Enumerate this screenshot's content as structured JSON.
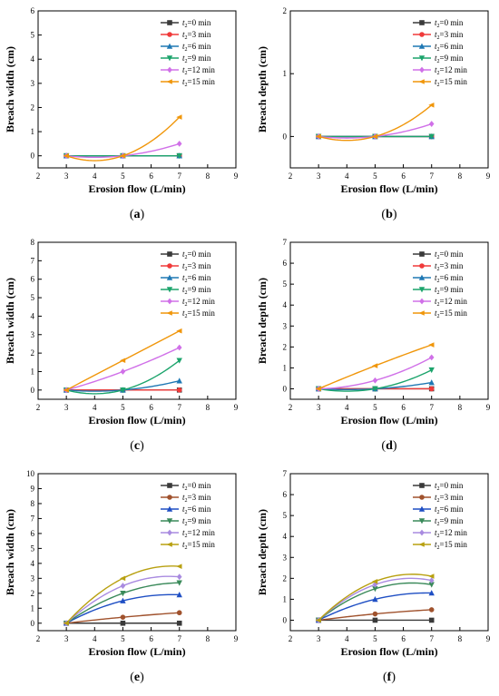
{
  "chart_data": [
    {
      "type": "line",
      "label": "a",
      "xlabel": "Erosion flow (L/min)",
      "ylabel": "Breach width (cm)",
      "xlim": [
        2,
        9
      ],
      "ylim": [
        -0.5,
        6
      ],
      "xticks": [
        2,
        3,
        4,
        5,
        6,
        7,
        8,
        9
      ],
      "yticks": [
        0,
        1,
        2,
        3,
        4,
        5,
        6
      ],
      "legend": "top-right",
      "series": [
        {
          "sub": "2",
          "pre": "t",
          "rest": "=0 min",
          "color": "#3a3a3a",
          "marker": "square",
          "x": [
            3,
            5,
            7
          ],
          "y": [
            0,
            0,
            0
          ]
        },
        {
          "sub": "2",
          "pre": "t",
          "rest": "=3 min",
          "color": "#f03a3a",
          "marker": "circle",
          "x": [
            3,
            5,
            7
          ],
          "y": [
            0,
            0,
            0
          ]
        },
        {
          "sub": "2",
          "pre": "t",
          "rest": "=6 min",
          "color": "#1f78b4",
          "marker": "triangle-up",
          "x": [
            3,
            5,
            7
          ],
          "y": [
            0,
            0,
            0
          ]
        },
        {
          "sub": "2",
          "pre": "t",
          "rest": "=9 min",
          "color": "#1ca46c",
          "marker": "triangle-down",
          "x": [
            3,
            5,
            7
          ],
          "y": [
            0,
            0,
            0
          ]
        },
        {
          "sub": "2",
          "pre": "t",
          "rest": "=12 min",
          "color": "#d070e8",
          "marker": "diamond",
          "x": [
            3,
            5,
            7
          ],
          "y": [
            0,
            0,
            0.5
          ]
        },
        {
          "sub": "2",
          "pre": "t",
          "rest": "=15 min",
          "color": "#f0960a",
          "marker": "triangle-left",
          "x": [
            3,
            5,
            7
          ],
          "y": [
            0,
            0,
            1.6
          ]
        }
      ]
    },
    {
      "type": "line",
      "label": "b",
      "xlabel": "Erosion flow (L/min)",
      "ylabel": "Breach depth (cm)",
      "xlim": [
        2,
        9
      ],
      "ylim": [
        -0.5,
        2
      ],
      "xticks": [
        2,
        3,
        4,
        5,
        6,
        7,
        8,
        9
      ],
      "yticks": [
        0,
        1,
        2
      ],
      "legend": "top-right",
      "series": [
        {
          "sub": "2",
          "pre": "t",
          "rest": "=0 min",
          "color": "#3a3a3a",
          "marker": "square",
          "x": [
            3,
            5,
            7
          ],
          "y": [
            0,
            0,
            0
          ]
        },
        {
          "sub": "2",
          "pre": "t",
          "rest": "=3 min",
          "color": "#f03a3a",
          "marker": "circle",
          "x": [
            3,
            5,
            7
          ],
          "y": [
            0,
            0,
            0
          ]
        },
        {
          "sub": "2",
          "pre": "t",
          "rest": "=6 min",
          "color": "#1f78b4",
          "marker": "triangle-up",
          "x": [
            3,
            5,
            7
          ],
          "y": [
            0,
            0,
            0
          ]
        },
        {
          "sub": "2",
          "pre": "t",
          "rest": "=9 min",
          "color": "#1ca46c",
          "marker": "triangle-down",
          "x": [
            3,
            5,
            7
          ],
          "y": [
            0,
            0,
            0
          ]
        },
        {
          "sub": "2",
          "pre": "t",
          "rest": "=12 min",
          "color": "#d070e8",
          "marker": "diamond",
          "x": [
            3,
            5,
            7
          ],
          "y": [
            0,
            0,
            0.2
          ]
        },
        {
          "sub": "2",
          "pre": "t",
          "rest": "=15 min",
          "color": "#f0960a",
          "marker": "triangle-left",
          "x": [
            3,
            5,
            7
          ],
          "y": [
            0,
            0,
            0.5
          ]
        }
      ]
    },
    {
      "type": "line",
      "label": "c",
      "xlabel": "Erosion flow (L/min)",
      "ylabel": "Breach width (cm)",
      "xlim": [
        2,
        9
      ],
      "ylim": [
        -0.5,
        8
      ],
      "xticks": [
        2,
        3,
        4,
        5,
        6,
        7,
        8,
        9
      ],
      "yticks": [
        0,
        1,
        2,
        3,
        4,
        5,
        6,
        7,
        8
      ],
      "legend": "top-right",
      "series": [
        {
          "sub": "2",
          "pre": "t",
          "rest": "=0 min",
          "color": "#3a3a3a",
          "marker": "square",
          "x": [
            3,
            5,
            7
          ],
          "y": [
            0,
            0,
            0
          ]
        },
        {
          "sub": "2",
          "pre": "t",
          "rest": "=3 min",
          "color": "#f03a3a",
          "marker": "circle",
          "x": [
            3,
            5,
            7
          ],
          "y": [
            0,
            0,
            0
          ]
        },
        {
          "sub": "2",
          "pre": "t",
          "rest": "=6 min",
          "color": "#1f78b4",
          "marker": "triangle-up",
          "x": [
            3,
            5,
            7
          ],
          "y": [
            0,
            0,
            0.5
          ]
        },
        {
          "sub": "2",
          "pre": "t",
          "rest": "=9 min",
          "color": "#1ca46c",
          "marker": "triangle-down",
          "x": [
            3,
            5,
            7
          ],
          "y": [
            0,
            0,
            1.6
          ]
        },
        {
          "sub": "2",
          "pre": "t",
          "rest": "=12 min",
          "color": "#d070e8",
          "marker": "diamond",
          "x": [
            3,
            5,
            7
          ],
          "y": [
            0,
            1.0,
            2.3
          ]
        },
        {
          "sub": "2",
          "pre": "t",
          "rest": "=15 min",
          "color": "#f0960a",
          "marker": "triangle-left",
          "x": [
            3,
            5,
            7
          ],
          "y": [
            0,
            1.6,
            3.2
          ]
        }
      ]
    },
    {
      "type": "line",
      "label": "d",
      "xlabel": "Erosion flow (L/min)",
      "ylabel": "Breach depth (cm)",
      "xlim": [
        2,
        9
      ],
      "ylim": [
        -0.5,
        7
      ],
      "xticks": [
        2,
        3,
        4,
        5,
        6,
        7,
        8,
        9
      ],
      "yticks": [
        0,
        1,
        2,
        3,
        4,
        5,
        6,
        7
      ],
      "legend": "top-right",
      "series": [
        {
          "sub": "2",
          "pre": "t",
          "rest": "=0 min",
          "color": "#3a3a3a",
          "marker": "square",
          "x": [
            3,
            5,
            7
          ],
          "y": [
            0,
            0,
            0
          ]
        },
        {
          "sub": "2",
          "pre": "t",
          "rest": "=3 min",
          "color": "#f03a3a",
          "marker": "circle",
          "x": [
            3,
            5,
            7
          ],
          "y": [
            0,
            0,
            0
          ]
        },
        {
          "sub": "2",
          "pre": "t",
          "rest": "=6 min",
          "color": "#1f78b4",
          "marker": "triangle-up",
          "x": [
            3,
            5,
            7
          ],
          "y": [
            0,
            0,
            0.3
          ]
        },
        {
          "sub": "2",
          "pre": "t",
          "rest": "=9 min",
          "color": "#1ca46c",
          "marker": "triangle-down",
          "x": [
            3,
            5,
            7
          ],
          "y": [
            0,
            0,
            0.9
          ]
        },
        {
          "sub": "2",
          "pre": "t",
          "rest": "=12 min",
          "color": "#d070e8",
          "marker": "diamond",
          "x": [
            3,
            5,
            7
          ],
          "y": [
            0,
            0.4,
            1.5
          ]
        },
        {
          "sub": "2",
          "pre": "t",
          "rest": "=15 min",
          "color": "#f0960a",
          "marker": "triangle-left",
          "x": [
            3,
            5,
            7
          ],
          "y": [
            0,
            1.1,
            2.1
          ]
        }
      ]
    },
    {
      "type": "line",
      "label": "e",
      "xlabel": "Erosion flow (L/min)",
      "ylabel": "Breach width (cm)",
      "xlim": [
        2,
        9
      ],
      "ylim": [
        -0.5,
        10
      ],
      "xticks": [
        2,
        3,
        4,
        5,
        6,
        7,
        8,
        9
      ],
      "yticks": [
        0,
        1,
        2,
        3,
        4,
        5,
        6,
        7,
        8,
        9,
        10
      ],
      "legend": "top-right",
      "series": [
        {
          "sub": "2",
          "pre": "t",
          "rest": "=0 min",
          "color": "#3a3a3a",
          "marker": "square",
          "x": [
            3,
            5,
            7
          ],
          "y": [
            0,
            0,
            0
          ]
        },
        {
          "sub": "2",
          "pre": "t",
          "rest": "=3 min",
          "color": "#a0522d",
          "marker": "circle",
          "x": [
            3,
            5,
            7
          ],
          "y": [
            0,
            0.4,
            0.7
          ]
        },
        {
          "sub": "2",
          "pre": "t",
          "rest": "=6 min",
          "color": "#1f4fc4",
          "marker": "triangle-up",
          "x": [
            3,
            5,
            7
          ],
          "y": [
            0,
            1.5,
            1.9
          ]
        },
        {
          "sub": "2",
          "pre": "t",
          "rest": "=9 min",
          "color": "#3a8a5a",
          "marker": "triangle-down",
          "x": [
            3,
            5,
            7
          ],
          "y": [
            0,
            2.0,
            2.7
          ]
        },
        {
          "sub": "2",
          "pre": "t",
          "rest": "=12 min",
          "color": "#a98be0",
          "marker": "diamond",
          "x": [
            3,
            5,
            7
          ],
          "y": [
            0,
            2.5,
            3.1
          ]
        },
        {
          "sub": "2",
          "pre": "t",
          "rest": "=15 min",
          "color": "#b8a010",
          "marker": "triangle-left",
          "x": [
            3,
            5,
            7
          ],
          "y": [
            0,
            3.0,
            3.8
          ]
        }
      ]
    },
    {
      "type": "line",
      "label": "f",
      "xlabel": "Erosion flow (L/min)",
      "ylabel": "Breach depth (cm)",
      "xlim": [
        2,
        9
      ],
      "ylim": [
        -0.5,
        7
      ],
      "xticks": [
        2,
        3,
        4,
        5,
        6,
        7,
        8,
        9
      ],
      "yticks": [
        0,
        1,
        2,
        3,
        4,
        5,
        6,
        7
      ],
      "legend": "top-right",
      "series": [
        {
          "sub": "2",
          "pre": "t",
          "rest": "=0 min",
          "color": "#3a3a3a",
          "marker": "square",
          "x": [
            3,
            5,
            7
          ],
          "y": [
            0,
            0,
            0
          ]
        },
        {
          "sub": "2",
          "pre": "t",
          "rest": "=3 min",
          "color": "#a0522d",
          "marker": "circle",
          "x": [
            3,
            5,
            7
          ],
          "y": [
            0,
            0.3,
            0.5
          ]
        },
        {
          "sub": "2",
          "pre": "t",
          "rest": "=6 min",
          "color": "#1f4fc4",
          "marker": "triangle-up",
          "x": [
            3,
            5,
            7
          ],
          "y": [
            0,
            1.0,
            1.3
          ]
        },
        {
          "sub": "2",
          "pre": "t",
          "rest": "=9 min",
          "color": "#3a8a5a",
          "marker": "triangle-down",
          "x": [
            3,
            5,
            7
          ],
          "y": [
            0,
            1.5,
            1.7
          ]
        },
        {
          "sub": "2",
          "pre": "t",
          "rest": "=12 min",
          "color": "#a98be0",
          "marker": "diamond",
          "x": [
            3,
            5,
            7
          ],
          "y": [
            0,
            1.7,
            1.9
          ]
        },
        {
          "sub": "2",
          "pre": "t",
          "rest": "=15 min",
          "color": "#b8a010",
          "marker": "triangle-left",
          "x": [
            3,
            5,
            7
          ],
          "y": [
            0,
            1.85,
            2.1
          ]
        }
      ]
    }
  ]
}
